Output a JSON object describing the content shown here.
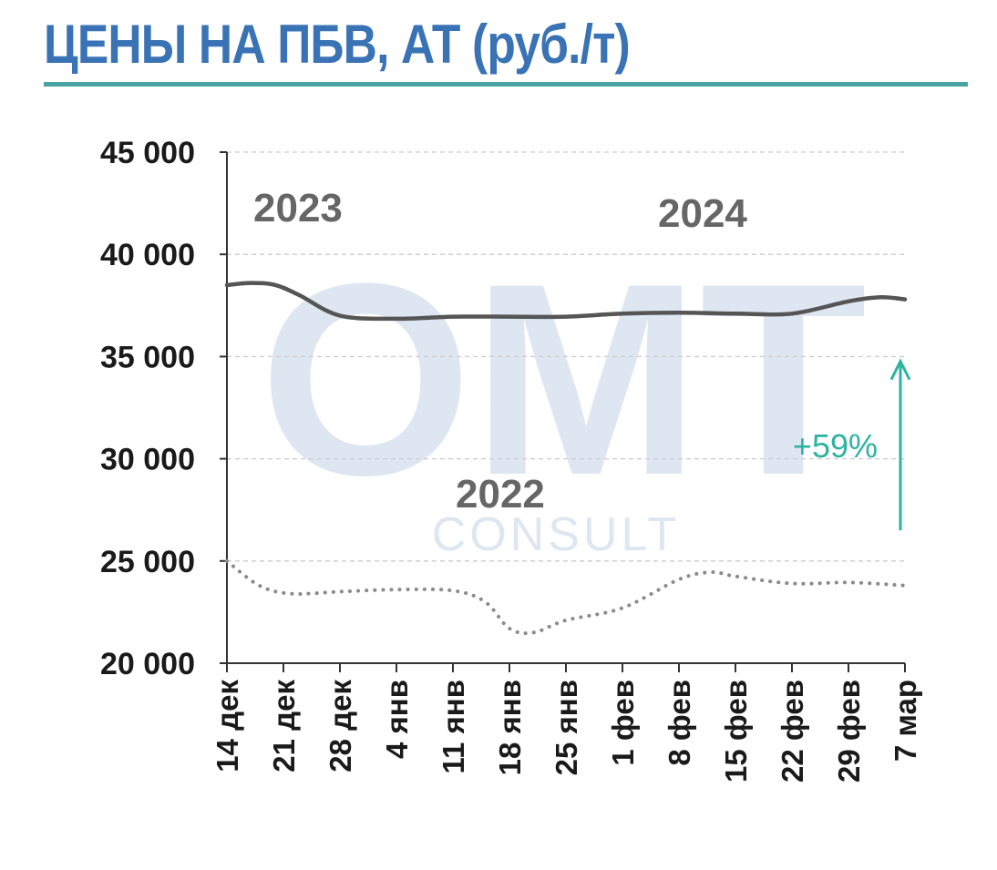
{
  "title": "ЦЕНЫ НА ПБВ, АТ (руб./т)",
  "colors": {
    "title": "#3a73b5",
    "rule": "#4aa3a3",
    "line_2023_2024": "#555555",
    "line_2021_2022": "#8a8a8a",
    "annotation": "#2db3a0",
    "grid": "#cccccc",
    "axis": "#333333"
  },
  "watermark": {
    "logo_text": "OMT",
    "subtitle": "CONSULT"
  },
  "chart_data": {
    "type": "line",
    "title": "ЦЕНЫ НА ПБВ, АТ (руб./т)",
    "categories": [
      "14 дек",
      "21 дек",
      "28 дек",
      "4 янв",
      "11 янв",
      "18 янв",
      "25 янв",
      "1 фев",
      "8 фев",
      "15 фев",
      "22 фев",
      "29 фев",
      "7 мар"
    ],
    "x": [
      0,
      7,
      14,
      21,
      28,
      35,
      42,
      49,
      56,
      63,
      70,
      77,
      84
    ],
    "ylim": [
      20000,
      45000
    ],
    "yticks": [
      20000,
      25000,
      30000,
      35000,
      40000,
      45000
    ],
    "ytick_labels": [
      "20 000",
      "25 000",
      "30 000",
      "35 000",
      "40 000",
      "45 000"
    ],
    "grid": "horizontal dashed",
    "series": [
      {
        "label_parts": [
          "2023",
          "2024"
        ],
        "style": "solid",
        "x": [
          0,
          3,
          6,
          9,
          14,
          21,
          28,
          35,
          42,
          49,
          56,
          63,
          70,
          77,
          81,
          84
        ],
        "values": [
          38500,
          38600,
          38500,
          38000,
          37000,
          36850,
          36950,
          36950,
          36950,
          37100,
          37150,
          37100,
          37100,
          37700,
          37900,
          37800
        ]
      },
      {
        "label_parts": [
          "2022"
        ],
        "style": "dotted",
        "x": [
          0,
          4,
          8,
          14,
          21,
          28,
          32,
          35,
          38,
          42,
          49,
          56,
          60,
          63,
          70,
          77,
          84
        ],
        "values": [
          25000,
          23800,
          23400,
          23500,
          23600,
          23550,
          23000,
          21700,
          21500,
          22100,
          22700,
          24100,
          24450,
          24250,
          23900,
          23950,
          23800
        ]
      }
    ],
    "annotations": [
      {
        "text": "+59%",
        "type": "arrow",
        "from_value": 26500,
        "to_value": 34500,
        "x": 84
      }
    ]
  }
}
